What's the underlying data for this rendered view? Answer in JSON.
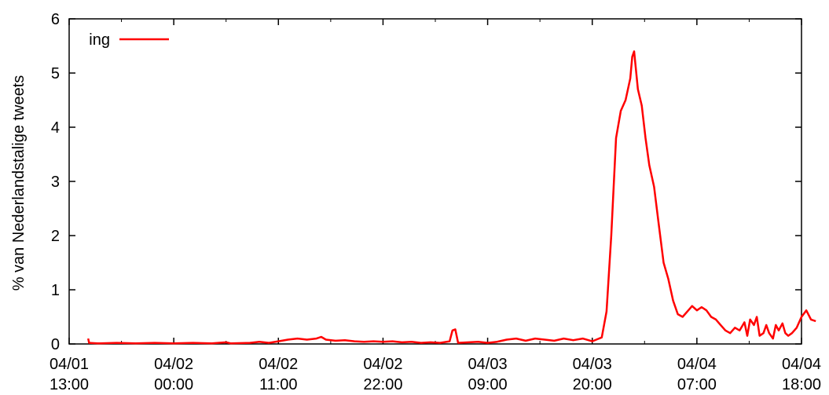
{
  "chart_data": {
    "type": "line",
    "title": "",
    "xlabel": "",
    "ylabel": "% van Nederlandstalige tweets",
    "ylim": [
      0,
      6
    ],
    "yticks": [
      "0",
      "1",
      "2",
      "3",
      "4",
      "5",
      "6"
    ],
    "xlim_hours": [
      0,
      77
    ],
    "xticks": [
      {
        "date": "04/01",
        "time": "13:00"
      },
      {
        "date": "04/02",
        "time": "00:00"
      },
      {
        "date": "04/02",
        "time": "11:00"
      },
      {
        "date": "04/02",
        "time": "22:00"
      },
      {
        "date": "04/03",
        "time": "09:00"
      },
      {
        "date": "04/03",
        "time": "20:00"
      },
      {
        "date": "04/04",
        "time": "07:00"
      },
      {
        "date": "04/04",
        "time": "18:00"
      }
    ],
    "grid": false,
    "legend": "top-left",
    "series": [
      {
        "name": "ing",
        "color": "#ff0000",
        "points": [
          [
            2.0,
            0.1
          ],
          [
            2.1,
            0.02
          ],
          [
            3,
            0.01
          ],
          [
            5,
            0.02
          ],
          [
            7,
            0.01
          ],
          [
            9,
            0.02
          ],
          [
            11,
            0.01
          ],
          [
            13,
            0.02
          ],
          [
            15,
            0.01
          ],
          [
            16.5,
            0.03
          ],
          [
            17,
            0.01
          ],
          [
            19,
            0.02
          ],
          [
            20,
            0.04
          ],
          [
            21,
            0.02
          ],
          [
            22,
            0.05
          ],
          [
            23,
            0.08
          ],
          [
            24,
            0.1
          ],
          [
            25,
            0.08
          ],
          [
            26,
            0.1
          ],
          [
            26.5,
            0.13
          ],
          [
            27,
            0.08
          ],
          [
            28,
            0.06
          ],
          [
            29,
            0.07
          ],
          [
            30,
            0.05
          ],
          [
            31,
            0.04
          ],
          [
            32,
            0.05
          ],
          [
            33,
            0.04
          ],
          [
            34,
            0.05
          ],
          [
            35,
            0.03
          ],
          [
            36,
            0.04
          ],
          [
            37,
            0.02
          ],
          [
            38,
            0.03
          ],
          [
            39,
            0.02
          ],
          [
            40,
            0.05
          ],
          [
            40.3,
            0.25
          ],
          [
            40.6,
            0.27
          ],
          [
            40.9,
            0.02
          ],
          [
            42,
            0.03
          ],
          [
            43,
            0.04
          ],
          [
            44,
            0.02
          ],
          [
            45,
            0.04
          ],
          [
            46,
            0.08
          ],
          [
            47,
            0.1
          ],
          [
            48,
            0.06
          ],
          [
            49,
            0.1
          ],
          [
            50,
            0.08
          ],
          [
            51,
            0.06
          ],
          [
            52,
            0.1
          ],
          [
            53,
            0.07
          ],
          [
            54,
            0.1
          ],
          [
            55,
            0.05
          ],
          [
            56,
            0.12
          ],
          [
            56.5,
            0.6
          ],
          [
            57,
            2.0
          ],
          [
            57.5,
            3.8
          ],
          [
            58,
            4.3
          ],
          [
            58.5,
            4.5
          ],
          [
            59,
            4.9
          ],
          [
            59.2,
            5.3
          ],
          [
            59.4,
            5.4
          ],
          [
            59.8,
            4.7
          ],
          [
            60.2,
            4.4
          ],
          [
            60.6,
            3.8
          ],
          [
            61,
            3.3
          ],
          [
            61.5,
            2.9
          ],
          [
            62,
            2.2
          ],
          [
            62.5,
            1.5
          ],
          [
            63,
            1.2
          ],
          [
            63.5,
            0.8
          ],
          [
            64,
            0.55
          ],
          [
            64.5,
            0.5
          ],
          [
            65,
            0.6
          ],
          [
            65.5,
            0.7
          ],
          [
            66,
            0.62
          ],
          [
            66.5,
            0.68
          ],
          [
            67,
            0.62
          ],
          [
            67.5,
            0.5
          ],
          [
            68,
            0.45
          ],
          [
            68.5,
            0.35
          ],
          [
            69,
            0.25
          ],
          [
            69.5,
            0.2
          ],
          [
            70,
            0.3
          ],
          [
            70.5,
            0.25
          ],
          [
            71,
            0.4
          ],
          [
            71.3,
            0.15
          ],
          [
            71.6,
            0.45
          ],
          [
            72,
            0.35
          ],
          [
            72.3,
            0.5
          ],
          [
            72.6,
            0.15
          ],
          [
            73,
            0.2
          ],
          [
            73.3,
            0.35
          ],
          [
            73.6,
            0.2
          ],
          [
            74,
            0.1
          ],
          [
            74.3,
            0.35
          ],
          [
            74.6,
            0.25
          ],
          [
            75,
            0.38
          ],
          [
            75.3,
            0.2
          ],
          [
            75.6,
            0.15
          ],
          [
            76,
            0.2
          ],
          [
            76.5,
            0.3
          ],
          [
            77,
            0.5
          ],
          [
            77.5,
            0.62
          ],
          [
            78,
            0.45
          ],
          [
            78.5,
            0.42
          ]
        ]
      }
    ]
  }
}
